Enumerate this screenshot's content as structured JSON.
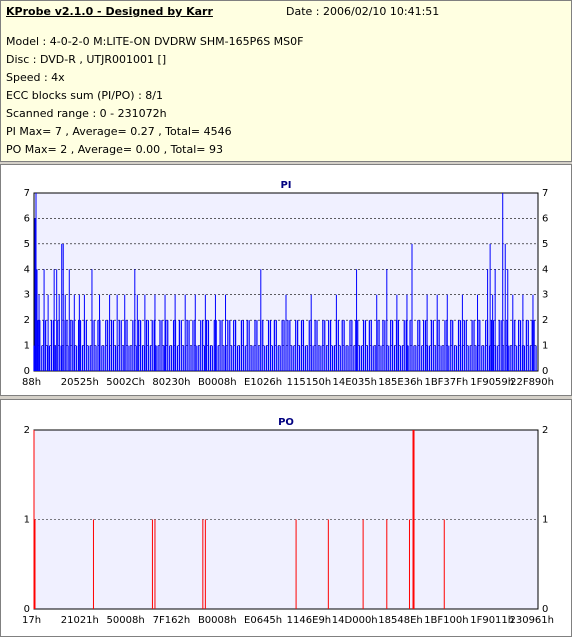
{
  "header": {
    "title": "KProbe v2.1.0 - Designed by Karr",
    "date": "Date : 2006/02/10 10:41:51",
    "lines": [
      "Model : 4-0-2-0 M:LITE-ON DVDRW SHM-165P6S MS0F",
      "Disc : DVD-R , UTJR001001 []",
      "Speed : 4x",
      "ECC blocks sum (PI/PO) : 8/1",
      "Scanned range : 0 - 231072h",
      "PI Max= 7 , Average= 0.27 , Total= 4546",
      "PO Max= 2 , Average= 0.00 , Total= 93"
    ]
  },
  "colors": {
    "pi_bar": "#0000ff",
    "po_bar": "#ff0000",
    "plot_bg": "#f0f0ff"
  },
  "chart_data": [
    {
      "type": "bar",
      "title": "PI",
      "ylim": [
        0,
        7
      ],
      "yticks": [
        0,
        1,
        2,
        3,
        4,
        5,
        6,
        7
      ],
      "xticks": [
        "88h",
        "20525h",
        "5002Ch",
        "80230h",
        "B0008h",
        "E1026h",
        "115150h",
        "14E035h",
        "185E36h",
        "1BF37Fh",
        "1F9059h",
        "22F890h"
      ],
      "x_range": [
        0,
        1
      ],
      "baseline_level": 2,
      "spikes": [
        {
          "x": 0.002,
          "v": 6
        },
        {
          "x": 0.004,
          "v": 7
        },
        {
          "x": 0.006,
          "v": 4
        },
        {
          "x": 0.01,
          "v": 3
        },
        {
          "x": 0.02,
          "v": 4
        },
        {
          "x": 0.028,
          "v": 3
        },
        {
          "x": 0.04,
          "v": 4
        },
        {
          "x": 0.045,
          "v": 4
        },
        {
          "x": 0.05,
          "v": 3
        },
        {
          "x": 0.055,
          "v": 5
        },
        {
          "x": 0.058,
          "v": 5
        },
        {
          "x": 0.062,
          "v": 3
        },
        {
          "x": 0.07,
          "v": 4
        },
        {
          "x": 0.08,
          "v": 3
        },
        {
          "x": 0.09,
          "v": 3
        },
        {
          "x": 0.1,
          "v": 3
        },
        {
          "x": 0.115,
          "v": 4
        },
        {
          "x": 0.13,
          "v": 3
        },
        {
          "x": 0.15,
          "v": 3
        },
        {
          "x": 0.165,
          "v": 3
        },
        {
          "x": 0.18,
          "v": 3
        },
        {
          "x": 0.2,
          "v": 4
        },
        {
          "x": 0.205,
          "v": 3
        },
        {
          "x": 0.22,
          "v": 3
        },
        {
          "x": 0.24,
          "v": 3
        },
        {
          "x": 0.26,
          "v": 3
        },
        {
          "x": 0.28,
          "v": 3
        },
        {
          "x": 0.3,
          "v": 3
        },
        {
          "x": 0.32,
          "v": 3
        },
        {
          "x": 0.34,
          "v": 3
        },
        {
          "x": 0.36,
          "v": 3
        },
        {
          "x": 0.38,
          "v": 3
        },
        {
          "x": 0.45,
          "v": 4
        },
        {
          "x": 0.5,
          "v": 3
        },
        {
          "x": 0.55,
          "v": 3
        },
        {
          "x": 0.6,
          "v": 3
        },
        {
          "x": 0.64,
          "v": 4
        },
        {
          "x": 0.68,
          "v": 3
        },
        {
          "x": 0.7,
          "v": 4
        },
        {
          "x": 0.72,
          "v": 3
        },
        {
          "x": 0.74,
          "v": 3
        },
        {
          "x": 0.75,
          "v": 5
        },
        {
          "x": 0.78,
          "v": 3
        },
        {
          "x": 0.8,
          "v": 3
        },
        {
          "x": 0.82,
          "v": 3
        },
        {
          "x": 0.85,
          "v": 3
        },
        {
          "x": 0.88,
          "v": 3
        },
        {
          "x": 0.9,
          "v": 4
        },
        {
          "x": 0.905,
          "v": 5
        },
        {
          "x": 0.91,
          "v": 3
        },
        {
          "x": 0.915,
          "v": 4
        },
        {
          "x": 0.93,
          "v": 7
        },
        {
          "x": 0.935,
          "v": 5
        },
        {
          "x": 0.94,
          "v": 4
        },
        {
          "x": 0.95,
          "v": 3
        },
        {
          "x": 0.97,
          "v": 3
        },
        {
          "x": 0.99,
          "v": 3
        }
      ]
    },
    {
      "type": "bar",
      "title": "PO",
      "ylim": [
        0,
        2
      ],
      "yticks": [
        0,
        1,
        2
      ],
      "xticks": [
        "17h",
        "21021h",
        "50008h",
        "7F162h",
        "B0008h",
        "E0645h",
        "1146E9h",
        "14D000h",
        "18548Eh",
        "1BF100h",
        "1F9011h",
        "230961h"
      ],
      "x_range": [
        0,
        1
      ],
      "spikes": [
        {
          "x": 0.0,
          "v": 2
        },
        {
          "x": 0.002,
          "v": 1
        },
        {
          "x": 0.118,
          "v": 1
        },
        {
          "x": 0.235,
          "v": 1
        },
        {
          "x": 0.24,
          "v": 1
        },
        {
          "x": 0.335,
          "v": 1
        },
        {
          "x": 0.34,
          "v": 1
        },
        {
          "x": 0.52,
          "v": 1
        },
        {
          "x": 0.584,
          "v": 1
        },
        {
          "x": 0.653,
          "v": 1
        },
        {
          "x": 0.7,
          "v": 1
        },
        {
          "x": 0.745,
          "v": 1
        },
        {
          "x": 0.752,
          "v": 2
        },
        {
          "x": 0.754,
          "v": 2
        },
        {
          "x": 0.814,
          "v": 1
        }
      ]
    }
  ]
}
